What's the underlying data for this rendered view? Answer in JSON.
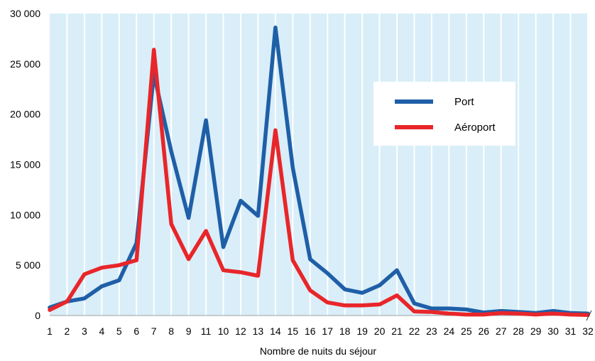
{
  "chart_data": {
    "type": "line",
    "xlabel": "Nombre de nuits du séjour",
    "ylabel": "",
    "ylim": [
      0,
      30000
    ],
    "yticks": [
      0,
      5000,
      10000,
      15000,
      20000,
      25000,
      30000
    ],
    "ytick_labels": [
      "0",
      "5 000",
      "10 000",
      "15 000",
      "20 000",
      "25 000",
      "30 000"
    ],
    "categories": [
      "1",
      "2",
      "3",
      "4",
      "5",
      "6",
      "7",
      "8",
      "9",
      "11",
      "10",
      "12",
      "13",
      "14",
      "15",
      "16",
      "17",
      "18",
      "19",
      "20",
      "21",
      "22",
      "23",
      "24",
      "25",
      "26",
      "27",
      "28",
      "29",
      "30",
      "31",
      "32"
    ],
    "grid": "vertical",
    "legend_position": "right",
    "axis_break": "right",
    "series": [
      {
        "name": "Port",
        "color": "#1f5fa8",
        "values": [
          800,
          1400,
          1700,
          2900,
          3500,
          7200,
          24000,
          16300,
          9700,
          19400,
          6800,
          11400,
          9900,
          28600,
          14700,
          5600,
          4200,
          2600,
          2250,
          3000,
          4500,
          1200,
          700,
          700,
          600,
          300,
          450,
          350,
          250,
          450,
          250,
          200
        ]
      },
      {
        "name": "Aéroport",
        "color": "#e8262a",
        "values": [
          550,
          1400,
          4100,
          4750,
          5000,
          5500,
          26400,
          9100,
          5600,
          8400,
          4500,
          4300,
          3950,
          18400,
          5500,
          2500,
          1300,
          1000,
          1000,
          1100,
          2000,
          400,
          350,
          200,
          100,
          100,
          250,
          200,
          100,
          200,
          100,
          50
        ]
      }
    ]
  }
}
